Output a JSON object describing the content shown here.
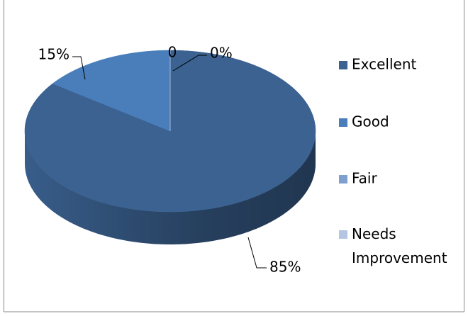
{
  "chart_data": {
    "type": "pie",
    "categories": [
      "Excellent",
      "Good",
      "Fair",
      "Needs Improvement"
    ],
    "values": [
      85,
      15,
      0,
      0
    ],
    "value_labels": [
      "85%",
      "15%",
      "0",
      "0%"
    ],
    "colors": [
      "#3b6291",
      "#4a7ebb",
      "#7fa0cf",
      "#b4c5e1"
    ],
    "legend": "right"
  }
}
